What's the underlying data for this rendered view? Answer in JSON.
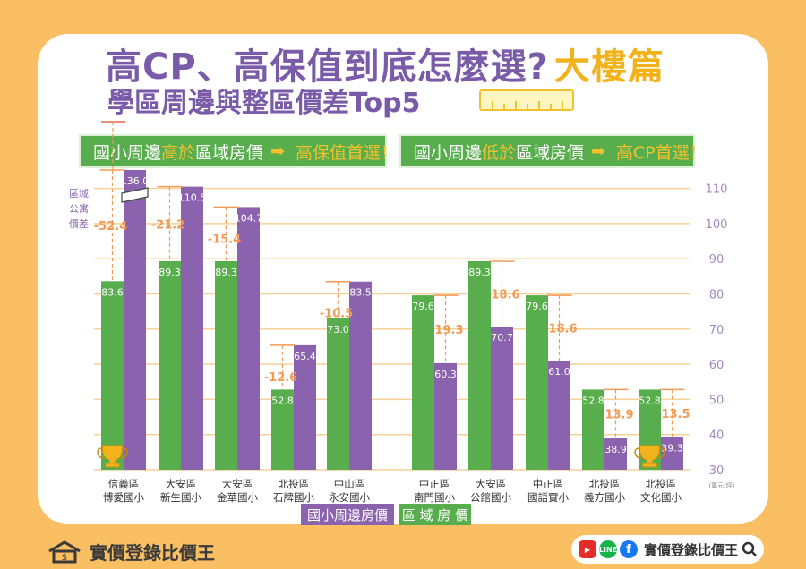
{
  "title": {
    "main": "高CP、高保值到底怎麼選?",
    "highlight": "大樓篇"
  },
  "subtitle": "學區周邊與整區價差Top5",
  "banners": {
    "left": {
      "prefix": "國小周邊",
      "emph": "高於",
      "suffix": "區域房價",
      "arrow": "➡",
      "end": "高保值首選！"
    },
    "right": {
      "prefix": "國小周邊",
      "emph": "低於",
      "suffix": "區域房價",
      "arrow": "➡",
      "end": "高CP首選！"
    }
  },
  "legend": {
    "school": "國小周邊房價",
    "region": "區 域 房 價"
  },
  "colors": {
    "region": "#58ad4d",
    "school": "#8b62ad",
    "diff": "#f29a55",
    "grid": "#f8d096",
    "axis": "#a488c2",
    "title": "#7a5ba8",
    "accent": "#f2b21c"
  },
  "footer": {
    "brand": "實價登錄比價王"
  },
  "icons": [
    "house-dollar-icon",
    "youtube-icon",
    "line-icon",
    "facebook-icon",
    "search-icon",
    "trophy-icon",
    "ruler-icon"
  ],
  "chart_data": {
    "type": "bar",
    "y_axis_label": "區域公寓價差",
    "unit": "(萬元/坪)",
    "ylim": [
      30,
      110
    ],
    "yticks": [
      30,
      40,
      50,
      60,
      70,
      80,
      90,
      100,
      110
    ],
    "grid": true,
    "groups": [
      {
        "label_line1": "信義區",
        "label_line2": "博愛國小",
        "region": 83.6,
        "school": 136.0,
        "school_label": "136.0",
        "diff": "-52.4",
        "trophy": true,
        "axis_break": true
      },
      {
        "label_line1": "大安區",
        "label_line2": "新生國小",
        "region": 89.3,
        "school": 110.5,
        "school_label": "110.5",
        "diff": "-21.2"
      },
      {
        "label_line1": "大安區",
        "label_line2": "金華國小",
        "region": 89.3,
        "school": 104.7,
        "school_label": "104.7",
        "diff": "-15.4"
      },
      {
        "label_line1": "北投區",
        "label_line2": "石牌國小",
        "region": 52.8,
        "school": 65.4,
        "school_label": "65.4",
        "diff": "-12.6"
      },
      {
        "label_line1": "中山區",
        "label_line2": "永安國小",
        "region": 73.0,
        "school": 83.5,
        "school_label": "83.5",
        "diff": "-10.5"
      },
      {
        "label_line1": "中正區",
        "label_line2": "南門國小",
        "region": 79.6,
        "school": 60.3,
        "school_label": "60.3",
        "diff": "19.3"
      },
      {
        "label_line1": "大安區",
        "label_line2": "公館國小",
        "region": 89.3,
        "school": 70.7,
        "school_label": "70.7",
        "diff": "18.6"
      },
      {
        "label_line1": "中正區",
        "label_line2": "國語實小",
        "region": 79.6,
        "school": 61.0,
        "school_label": "61.0",
        "diff": "18.6"
      },
      {
        "label_line1": "北投區",
        "label_line2": "義方國小",
        "region": 52.8,
        "school": 38.9,
        "school_label": "38.9",
        "diff": "13.9"
      },
      {
        "label_line1": "北投區",
        "label_line2": "文化國小",
        "region": 52.8,
        "school": 39.3,
        "school_label": "39.3",
        "diff": "13.5",
        "trophy": true
      }
    ]
  }
}
